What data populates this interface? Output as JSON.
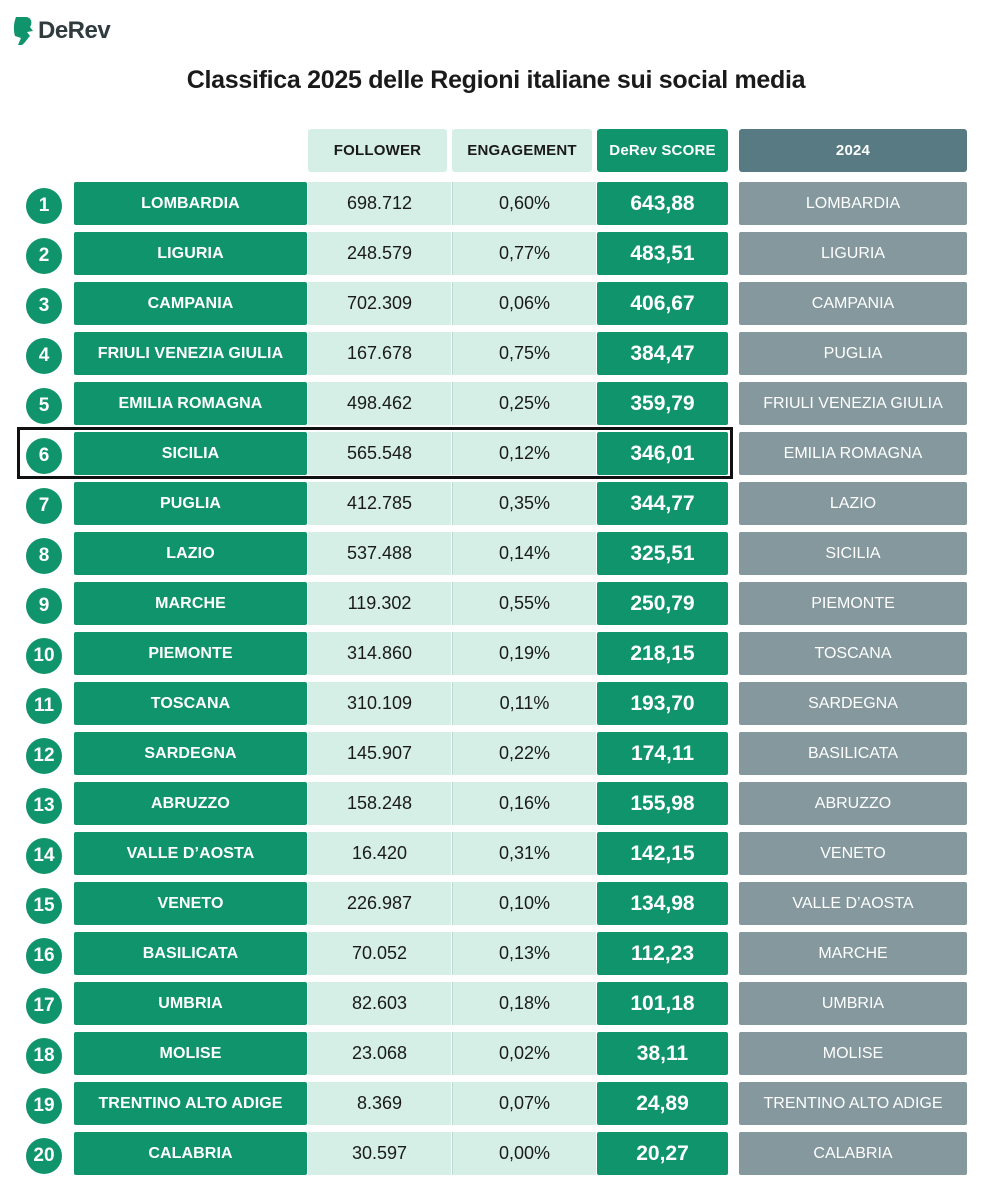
{
  "brand": {
    "name": "DeRev",
    "icon": "derev-logo-icon",
    "color": "#10946b"
  },
  "title": "Classifica 2025 delle Regioni italiane sui social media",
  "headers": {
    "follower": "FOLLOWER",
    "engagement": "ENGAGEMENT",
    "score": "DeRev SCORE",
    "previous": "2024"
  },
  "colors": {
    "primary_green": "#10946b",
    "light_green": "#d5eee6",
    "header_2024": "#587b83",
    "cell_2024": "#84989d"
  },
  "highlighted_rank": 6,
  "rows": [
    {
      "rank": "1",
      "region": "LOMBARDIA",
      "follower": "698.712",
      "engagement": "0,60%",
      "score": "643,88",
      "prev": "LOMBARDIA"
    },
    {
      "rank": "2",
      "region": "LIGURIA",
      "follower": "248.579",
      "engagement": "0,77%",
      "score": "483,51",
      "prev": "LIGURIA"
    },
    {
      "rank": "3",
      "region": "CAMPANIA",
      "follower": "702.309",
      "engagement": "0,06%",
      "score": "406,67",
      "prev": "CAMPANIA"
    },
    {
      "rank": "4",
      "region": "FRIULI VENEZIA GIULIA",
      "follower": "167.678",
      "engagement": "0,75%",
      "score": "384,47",
      "prev": "PUGLIA"
    },
    {
      "rank": "5",
      "region": "EMILIA ROMAGNA",
      "follower": "498.462",
      "engagement": "0,25%",
      "score": "359,79",
      "prev": "FRIULI VENEZIA GIULIA"
    },
    {
      "rank": "6",
      "region": "SICILIA",
      "follower": "565.548",
      "engagement": "0,12%",
      "score": "346,01",
      "prev": "EMILIA ROMAGNA"
    },
    {
      "rank": "7",
      "region": "PUGLIA",
      "follower": "412.785",
      "engagement": "0,35%",
      "score": "344,77",
      "prev": "LAZIO"
    },
    {
      "rank": "8",
      "region": "LAZIO",
      "follower": "537.488",
      "engagement": "0,14%",
      "score": "325,51",
      "prev": "SICILIA"
    },
    {
      "rank": "9",
      "region": "MARCHE",
      "follower": "119.302",
      "engagement": "0,55%",
      "score": "250,79",
      "prev": "PIEMONTE"
    },
    {
      "rank": "10",
      "region": "PIEMONTE",
      "follower": "314.860",
      "engagement": "0,19%",
      "score": "218,15",
      "prev": "TOSCANA"
    },
    {
      "rank": "11",
      "region": "TOSCANA",
      "follower": "310.109",
      "engagement": "0,11%",
      "score": "193,70",
      "prev": "SARDEGNA"
    },
    {
      "rank": "12",
      "region": "SARDEGNA",
      "follower": "145.907",
      "engagement": "0,22%",
      "score": "174,11",
      "prev": "BASILICATA"
    },
    {
      "rank": "13",
      "region": "ABRUZZO",
      "follower": "158.248",
      "engagement": "0,16%",
      "score": "155,98",
      "prev": "ABRUZZO"
    },
    {
      "rank": "14",
      "region": "VALLE D’AOSTA",
      "follower": "16.420",
      "engagement": "0,31%",
      "score": "142,15",
      "prev": "VENETO"
    },
    {
      "rank": "15",
      "region": "VENETO",
      "follower": "226.987",
      "engagement": "0,10%",
      "score": "134,98",
      "prev": "VALLE D’AOSTA"
    },
    {
      "rank": "16",
      "region": "BASILICATA",
      "follower": "70.052",
      "engagement": "0,13%",
      "score": "112,23",
      "prev": "MARCHE"
    },
    {
      "rank": "17",
      "region": "UMBRIA",
      "follower": "82.603",
      "engagement": "0,18%",
      "score": "101,18",
      "prev": "UMBRIA"
    },
    {
      "rank": "18",
      "region": "MOLISE",
      "follower": "23.068",
      "engagement": "0,02%",
      "score": "38,11",
      "prev": "MOLISE"
    },
    {
      "rank": "19",
      "region": "TRENTINO ALTO ADIGE",
      "follower": "8.369",
      "engagement": "0,07%",
      "score": "24,89",
      "prev": "TRENTINO ALTO ADIGE"
    },
    {
      "rank": "20",
      "region": "CALABRIA",
      "follower": "30.597",
      "engagement": "0,00%",
      "score": "20,27",
      "prev": "CALABRIA"
    }
  ]
}
